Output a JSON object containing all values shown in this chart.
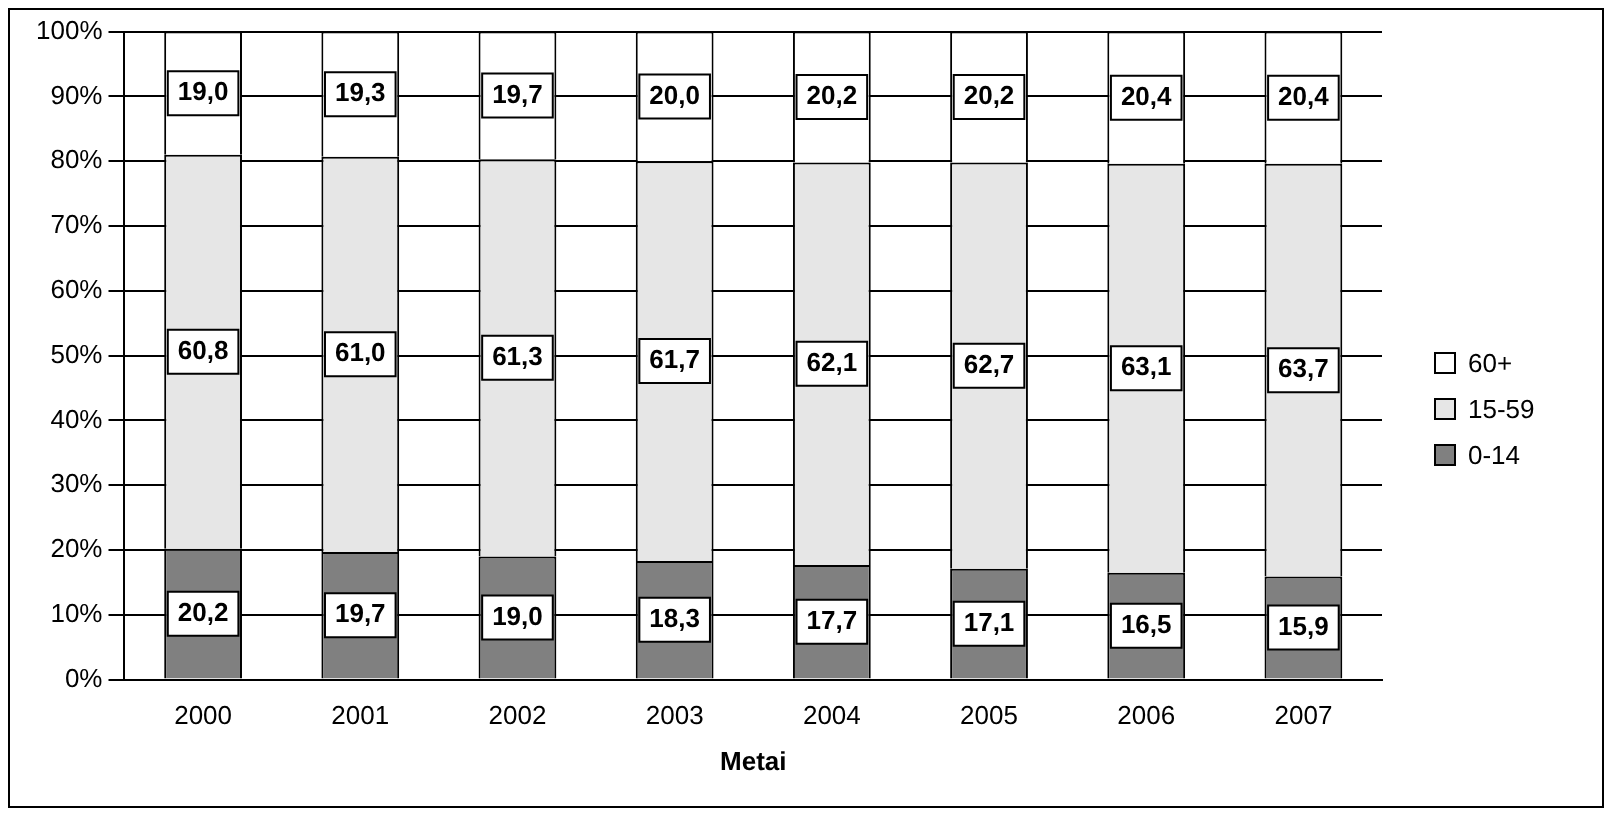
{
  "chart_data": {
    "type": "bar",
    "stacked": true,
    "xlabel": "Metai",
    "categories": [
      "2000",
      "2001",
      "2002",
      "2003",
      "2004",
      "2005",
      "2006",
      "2007"
    ],
    "series": [
      {
        "name": "0-14",
        "color": "#808080",
        "values": [
          20.2,
          19.7,
          19.0,
          18.3,
          17.7,
          17.1,
          16.5,
          15.9
        ],
        "value_labels": [
          "20,2",
          "19,7",
          "19,0",
          "18,3",
          "17,7",
          "17,1",
          "16,5",
          "15,9"
        ]
      },
      {
        "name": "15-59",
        "color": "#e6e6e6",
        "values": [
          60.8,
          61.0,
          61.3,
          61.7,
          62.1,
          62.7,
          63.1,
          63.7
        ],
        "value_labels": [
          "60,8",
          "61,0",
          "61,3",
          "61,7",
          "62,1",
          "62,7",
          "63,1",
          "63,7"
        ]
      },
      {
        "name": "60+",
        "color": "#ffffff",
        "values": [
          19.0,
          19.3,
          19.7,
          20.0,
          20.2,
          20.2,
          20.4,
          20.4
        ],
        "value_labels": [
          "19,0",
          "19,3",
          "19,7",
          "20,0",
          "20,2",
          "20,2",
          "20,4",
          "20,4"
        ]
      }
    ],
    "ylim": [
      0,
      100
    ],
    "yticks": [
      {
        "value": 0,
        "label": "0%"
      },
      {
        "value": 10,
        "label": "10%"
      },
      {
        "value": 20,
        "label": "20%"
      },
      {
        "value": 30,
        "label": "30%"
      },
      {
        "value": 40,
        "label": "40%"
      },
      {
        "value": 50,
        "label": "50%"
      },
      {
        "value": 60,
        "label": "60%"
      },
      {
        "value": 70,
        "label": "70%"
      },
      {
        "value": 80,
        "label": "80%"
      },
      {
        "value": 90,
        "label": "90%"
      },
      {
        "value": 100,
        "label": "100%"
      }
    ],
    "grid": "y",
    "legend": "right"
  }
}
